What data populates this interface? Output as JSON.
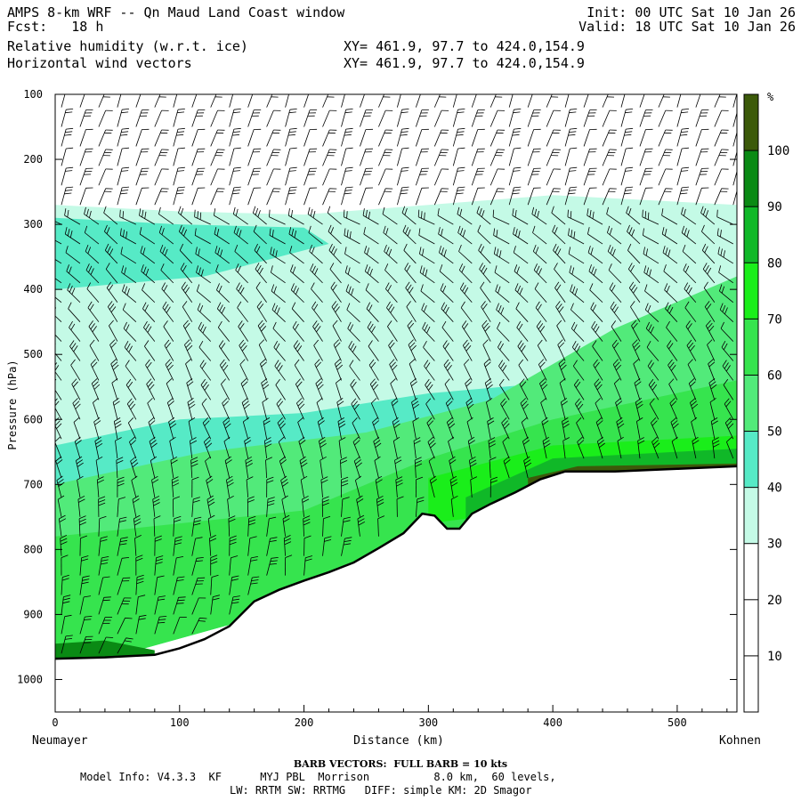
{
  "header": {
    "model_title": "AMPS 8-km WRF -- Qn Maud Land Coast window",
    "forecast": "Fcst:   18 h",
    "init": "Init: 00 UTC Sat 10 Jan 26",
    "valid": "Valid: 18 UTC Sat 10 Jan 26",
    "field1": "Relative humidity (w.r.t. ice)",
    "field2": "Horizontal wind vectors",
    "xy1": "XY= 461.9, 97.7 to 424.0,154.9",
    "xy2": "XY= 461.9, 97.7 to 424.0,154.9"
  },
  "footer": {
    "barb_note": "BARB VECTORS:  FULL BARB = 10 kts",
    "model_info": "Model Info: V4.3.3  KF      MYJ PBL  Morrison          8.0 km,  60 levels,",
    "model_info2": "LW: RRTM SW: RRTMG   DIFF: simple KM: 2D Smagor"
  },
  "colors": {
    "rh_0_30": "#ffffff",
    "rh_30_40": "#c4fae6",
    "rh_40_50": "#56eac6",
    "rh_50_60": "#52ea7a",
    "rh_60_70": "#36e44e",
    "rh_70_80": "#1aee1a",
    "rh_80_90": "#10b828",
    "rh_90_100": "#0a8a14",
    "rh_100_plus": "#3c5a0a",
    "terrain": "#ffffff"
  },
  "chart_data": {
    "type": "heatmap",
    "title": "Relative humidity (w.r.t. ice)",
    "xlabel": "Distance (km)",
    "ylabel": "Pressure (hPa)",
    "x_start_label": "Neumayer",
    "x_end_label": "Kohnen",
    "xlim": [
      0,
      548
    ],
    "ylim": [
      1050,
      100
    ],
    "x_ticks": [
      0,
      100,
      200,
      300,
      400,
      500
    ],
    "y_ticks": [
      100,
      200,
      300,
      400,
      500,
      600,
      700,
      800,
      900,
      1000
    ],
    "colorbar": {
      "unit": "%",
      "ticks": [
        10,
        20,
        30,
        40,
        50,
        60,
        70,
        80,
        90,
        100
      ]
    },
    "surface_pressure": [
      {
        "x": 0,
        "p": 968
      },
      {
        "x": 40,
        "p": 966
      },
      {
        "x": 80,
        "p": 962
      },
      {
        "x": 100,
        "p": 952
      },
      {
        "x": 120,
        "p": 938
      },
      {
        "x": 140,
        "p": 918
      },
      {
        "x": 160,
        "p": 880
      },
      {
        "x": 180,
        "p": 862
      },
      {
        "x": 200,
        "p": 848
      },
      {
        "x": 220,
        "p": 835
      },
      {
        "x": 240,
        "p": 820
      },
      {
        "x": 260,
        "p": 798
      },
      {
        "x": 280,
        "p": 775
      },
      {
        "x": 295,
        "p": 745
      },
      {
        "x": 305,
        "p": 748
      },
      {
        "x": 315,
        "p": 768
      },
      {
        "x": 325,
        "p": 768
      },
      {
        "x": 335,
        "p": 745
      },
      {
        "x": 350,
        "p": 730
      },
      {
        "x": 370,
        "p": 712
      },
      {
        "x": 390,
        "p": 692
      },
      {
        "x": 410,
        "p": 680
      },
      {
        "x": 450,
        "p": 680
      },
      {
        "x": 500,
        "p": 676
      },
      {
        "x": 548,
        "p": 672
      }
    ],
    "series": [
      {
        "name": "rh_30_40",
        "min_rh": 30,
        "points": [
          {
            "x": 0,
            "p": 270
          },
          {
            "x": 100,
            "p": 280
          },
          {
            "x": 200,
            "p": 285
          },
          {
            "x": 300,
            "p": 270
          },
          {
            "x": 400,
            "p": 255
          },
          {
            "x": 548,
            "p": 270
          },
          {
            "x": 548,
            "p": 700
          },
          {
            "x": 0,
            "p": 700
          }
        ]
      },
      {
        "name": "rh_40_50",
        "min_rh": 40,
        "points": [
          {
            "x": 0,
            "p": 290
          },
          {
            "x": 100,
            "p": 300
          },
          {
            "x": 200,
            "p": 305
          },
          {
            "x": 220,
            "p": 330
          },
          {
            "x": 120,
            "p": 380
          },
          {
            "x": 0,
            "p": 400
          }
        ]
      },
      {
        "name": "rh_40_50_low",
        "min_rh": 40,
        "points": [
          {
            "x": 0,
            "p": 640
          },
          {
            "x": 100,
            "p": 600
          },
          {
            "x": 200,
            "p": 590
          },
          {
            "x": 300,
            "p": 560
          },
          {
            "x": 420,
            "p": 540
          },
          {
            "x": 548,
            "p": 520
          },
          {
            "x": 548,
            "p": 700
          },
          {
            "x": 0,
            "p": 990
          }
        ]
      },
      {
        "name": "rh_50_60",
        "min_rh": 50,
        "points": [
          {
            "x": 0,
            "p": 700
          },
          {
            "x": 120,
            "p": 650
          },
          {
            "x": 250,
            "p": 620
          },
          {
            "x": 350,
            "p": 570
          },
          {
            "x": 450,
            "p": 460
          },
          {
            "x": 548,
            "p": 380
          },
          {
            "x": 548,
            "p": 700
          },
          {
            "x": 0,
            "p": 990
          }
        ]
      },
      {
        "name": "rh_60_70",
        "min_rh": 60,
        "points": [
          {
            "x": 0,
            "p": 780
          },
          {
            "x": 100,
            "p": 760
          },
          {
            "x": 200,
            "p": 740
          },
          {
            "x": 300,
            "p": 660
          },
          {
            "x": 400,
            "p": 600
          },
          {
            "x": 548,
            "p": 540
          },
          {
            "x": 548,
            "p": 700
          },
          {
            "x": 0,
            "p": 990
          }
        ]
      },
      {
        "name": "rh_70_80",
        "min_rh": 70,
        "points": [
          {
            "x": 300,
            "p": 690
          },
          {
            "x": 400,
            "p": 640
          },
          {
            "x": 548,
            "p": 625
          },
          {
            "x": 548,
            "p": 700
          },
          {
            "x": 300,
            "p": 760
          }
        ]
      },
      {
        "name": "rh_80_90",
        "min_rh": 80,
        "points": [
          {
            "x": 330,
            "p": 720
          },
          {
            "x": 400,
            "p": 660
          },
          {
            "x": 548,
            "p": 645
          },
          {
            "x": 548,
            "p": 700
          },
          {
            "x": 330,
            "p": 780
          }
        ]
      },
      {
        "name": "rh_90_100",
        "min_rh": 90,
        "points": [
          {
            "x": 0,
            "p": 945
          },
          {
            "x": 40,
            "p": 940
          },
          {
            "x": 80,
            "p": 955
          },
          {
            "x": 80,
            "p": 990
          },
          {
            "x": 0,
            "p": 990
          }
        ]
      },
      {
        "name": "rh_100_plus",
        "min_rh": 100,
        "points": [
          {
            "x": 380,
            "p": 690
          },
          {
            "x": 420,
            "p": 672
          },
          {
            "x": 548,
            "p": 668
          },
          {
            "x": 548,
            "p": 700
          },
          {
            "x": 380,
            "p": 700
          }
        ]
      }
    ],
    "wind_barbs": {
      "x_positions": [
        5,
        20,
        35,
        50,
        65,
        80,
        95,
        110,
        125,
        140,
        155,
        170,
        185,
        200,
        215,
        230,
        245,
        260,
        275,
        290,
        305,
        320,
        335,
        350,
        365,
        380,
        395,
        410,
        425,
        440,
        455,
        470,
        485,
        500,
        515,
        530,
        545
      ],
      "p_levels": [
        120,
        150,
        180,
        210,
        240,
        270,
        300,
        330,
        360,
        390,
        420,
        450,
        480,
        510,
        540,
        570,
        600,
        630,
        660,
        690,
        720,
        750,
        780,
        810,
        840,
        870,
        900,
        930,
        960
      ]
    }
  }
}
